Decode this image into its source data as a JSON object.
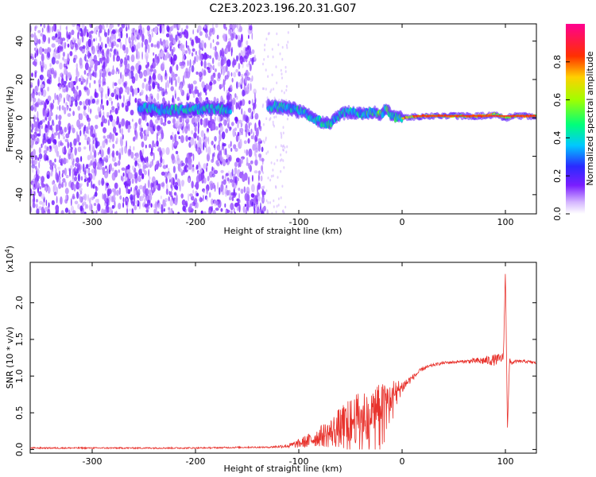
{
  "title": "C2E3.2023.196.20.31.G07",
  "chart_data": [
    {
      "type": "heatmap",
      "xlabel": "Height of straight line (km)",
      "ylabel": "Frequency (Hz)",
      "xlim": [
        -360,
        130
      ],
      "ylim": [
        -50,
        49
      ],
      "x_ticks": [
        -300,
        -200,
        -100,
        0,
        100
      ],
      "x_tick_labels": [
        "-300",
        "-200",
        "-100",
        "0",
        "100"
      ],
      "y_ticks": [
        -40,
        -20,
        0,
        20,
        40
      ],
      "y_tick_labels": [
        "-40",
        "-20",
        "0",
        "20",
        "40"
      ],
      "colorbar": {
        "label": "Normalized spectral amplitude",
        "range": [
          0.0,
          1.0
        ],
        "ticks": [
          0.0,
          0.2,
          0.4,
          0.6,
          0.8
        ],
        "tick_labels": [
          "0.0",
          "0.2",
          "0.4",
          "0.6",
          "0.8"
        ],
        "colormap": "white-purple-blue-cyan-green-yellow-red-magenta"
      },
      "signal_track": {
        "x": [
          -250,
          -230,
          -210,
          -190,
          -170,
          -125,
          -110,
          -95,
          -80,
          -70,
          -60,
          -50,
          -40,
          -30,
          -20,
          -15,
          -10,
          0,
          20,
          50,
          80,
          90,
          100,
          110,
          130
        ],
        "y": [
          5,
          4,
          4,
          5,
          4,
          6,
          5,
          3,
          -2,
          -3,
          2,
          3,
          2,
          3,
          2,
          5,
          1,
          0,
          1,
          1,
          1,
          2,
          0,
          1,
          1
        ]
      },
      "noise_region_x": [
        -360,
        -135
      ],
      "grid": false
    },
    {
      "type": "line",
      "xlabel": "Height of straight line (km)",
      "ylabel": "SNR (10 * v/v)",
      "yscale_label": "(x10^4)",
      "xlim": [
        -360,
        130
      ],
      "ylim": [
        -0.05,
        2.55
      ],
      "x_ticks": [
        -300,
        -200,
        -100,
        0,
        100
      ],
      "x_tick_labels": [
        "-300",
        "-200",
        "-100",
        "0",
        "100"
      ],
      "y_ticks": [
        0.0,
        0.5,
        1.0,
        1.5,
        2.0
      ],
      "y_tick_labels": [
        "0.0",
        "0.5",
        "1.0",
        "1.5",
        "2.0"
      ],
      "line_color": "#e8322c",
      "series": [
        {
          "x": [
            -360,
            -300,
            -250,
            -200,
            -150,
            -130,
            -110,
            -100,
            -90,
            -80,
            -70,
            -60,
            -50,
            -40,
            -30,
            -20,
            -10,
            0,
            10,
            20,
            30,
            40,
            60,
            80,
            90,
            98,
            100,
            102,
            104,
            106,
            110,
            120,
            130
          ],
          "y": [
            0.02,
            0.02,
            0.02,
            0.02,
            0.03,
            0.03,
            0.05,
            0.08,
            0.12,
            0.18,
            0.22,
            0.3,
            0.38,
            0.45,
            0.55,
            0.62,
            0.75,
            0.85,
            0.98,
            1.1,
            1.15,
            1.18,
            1.2,
            1.21,
            1.22,
            1.25,
            2.45,
            0.3,
            1.2,
            1.18,
            1.2,
            1.2,
            1.18
          ],
          "noise_amplitude": [
            0.01,
            0.01,
            0.01,
            0.01,
            0.01,
            0.01,
            0.03,
            0.06,
            0.1,
            0.14,
            0.2,
            0.28,
            0.32,
            0.35,
            0.32,
            0.28,
            0.2,
            0.1,
            0.04,
            0.03,
            0.02,
            0.02,
            0.02,
            0.06,
            0.08,
            0.06,
            0.0,
            0.0,
            0.05,
            0.03,
            0.02,
            0.02,
            0.02
          ]
        }
      ],
      "grid": false
    }
  ]
}
